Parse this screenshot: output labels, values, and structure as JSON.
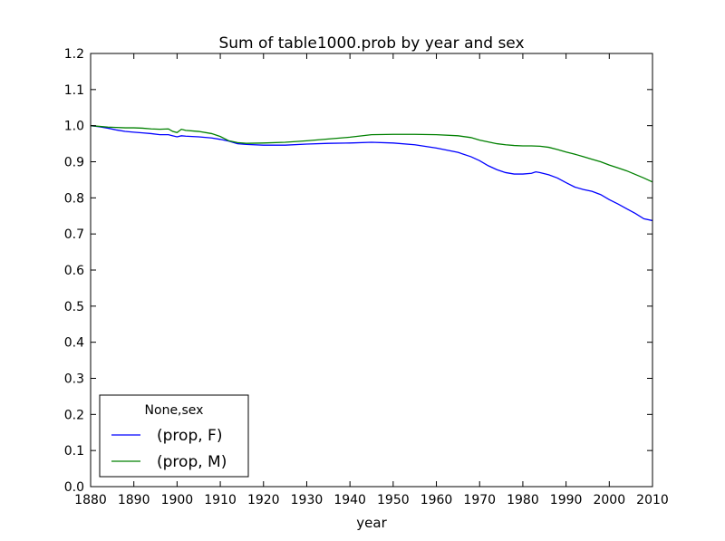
{
  "chart_data": {
    "type": "line",
    "title": "Sum of table1000.prob by year and sex",
    "xlabel": "year",
    "ylabel": "",
    "xlim": [
      1880,
      2010
    ],
    "ylim": [
      0.0,
      1.2
    ],
    "xticks": [
      1880,
      1890,
      1900,
      1910,
      1920,
      1930,
      1940,
      1950,
      1960,
      1970,
      1980,
      1990,
      2000,
      2010
    ],
    "yticks": [
      0.0,
      0.1,
      0.2,
      0.3,
      0.4,
      0.5,
      0.6,
      0.7,
      0.8,
      0.9,
      1.0,
      1.1,
      1.2
    ],
    "xtick_labels": [
      "1880",
      "1890",
      "1900",
      "1910",
      "1920",
      "1930",
      "1940",
      "1950",
      "1960",
      "1970",
      "1980",
      "1990",
      "2000",
      "2010"
    ],
    "ytick_labels": [
      "0.0",
      "0.1",
      "0.2",
      "0.3",
      "0.4",
      "0.5",
      "0.6",
      "0.7",
      "0.8",
      "0.9",
      "1.0",
      "1.1",
      "1.2"
    ],
    "grid": false,
    "legend": {
      "title": "None,sex",
      "placement": "lower-left"
    },
    "series": [
      {
        "name": "(prop, F)",
        "color": "#0000ff",
        "x": [
          1880,
          1882,
          1884,
          1886,
          1888,
          1890,
          1892,
          1894,
          1896,
          1898,
          1899,
          1900,
          1901,
          1902,
          1905,
          1908,
          1910,
          1912,
          1914,
          1916,
          1920,
          1925,
          1930,
          1935,
          1940,
          1945,
          1950,
          1955,
          1960,
          1965,
          1968,
          1970,
          1972,
          1974,
          1976,
          1978,
          1980,
          1982,
          1983,
          1984,
          1986,
          1988,
          1990,
          1992,
          1994,
          1996,
          1998,
          2000,
          2002,
          2004,
          2006,
          2008,
          2010
        ],
        "values": [
          1.0,
          0.997,
          0.993,
          0.988,
          0.984,
          0.982,
          0.98,
          0.978,
          0.975,
          0.975,
          0.972,
          0.969,
          0.972,
          0.971,
          0.969,
          0.966,
          0.962,
          0.957,
          0.95,
          0.948,
          0.946,
          0.946,
          0.949,
          0.951,
          0.952,
          0.954,
          0.952,
          0.947,
          0.938,
          0.926,
          0.914,
          0.903,
          0.889,
          0.878,
          0.87,
          0.866,
          0.866,
          0.868,
          0.872,
          0.87,
          0.864,
          0.855,
          0.842,
          0.83,
          0.823,
          0.818,
          0.809,
          0.795,
          0.783,
          0.77,
          0.757,
          0.742,
          0.737
        ]
      },
      {
        "name": "(prop, M)",
        "color": "#008000",
        "x": [
          1880,
          1882,
          1884,
          1886,
          1888,
          1890,
          1892,
          1894,
          1896,
          1898,
          1899,
          1900,
          1901,
          1902,
          1905,
          1908,
          1910,
          1912,
          1914,
          1916,
          1920,
          1925,
          1930,
          1935,
          1940,
          1945,
          1950,
          1955,
          1960,
          1965,
          1968,
          1970,
          1972,
          1974,
          1976,
          1978,
          1980,
          1982,
          1984,
          1986,
          1988,
          1990,
          1992,
          1994,
          1996,
          1998,
          2000,
          2002,
          2004,
          2006,
          2008,
          2010
        ],
        "values": [
          1.0,
          0.998,
          0.996,
          0.995,
          0.994,
          0.994,
          0.993,
          0.991,
          0.99,
          0.991,
          0.984,
          0.981,
          0.99,
          0.987,
          0.984,
          0.978,
          0.97,
          0.958,
          0.953,
          0.951,
          0.952,
          0.954,
          0.958,
          0.963,
          0.968,
          0.975,
          0.976,
          0.976,
          0.975,
          0.972,
          0.967,
          0.96,
          0.955,
          0.95,
          0.947,
          0.945,
          0.944,
          0.944,
          0.943,
          0.94,
          0.934,
          0.927,
          0.921,
          0.914,
          0.907,
          0.9,
          0.891,
          0.883,
          0.875,
          0.865,
          0.855,
          0.844
        ]
      }
    ]
  }
}
